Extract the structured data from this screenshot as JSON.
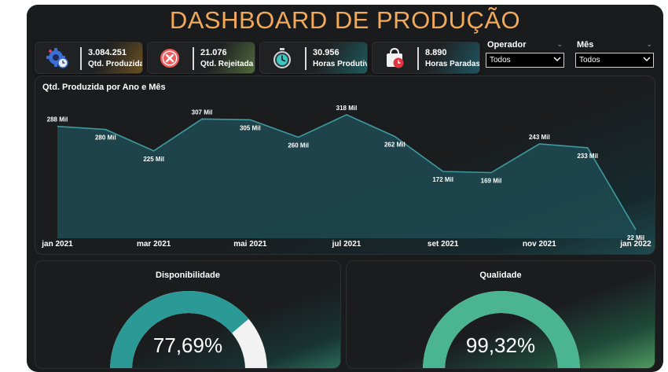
{
  "title": "DASHBOARD DE PRODUÇÃO",
  "kpis": [
    {
      "value": "3.084.251",
      "label": "Qtd. Produzida",
      "icon": "gear-clock-icon"
    },
    {
      "value": "21.076",
      "label": "Qtd. Rejeitada",
      "icon": "reject-x-icon"
    },
    {
      "value": "30.956",
      "label": "Horas Produtivas",
      "icon": "stopwatch-icon"
    },
    {
      "value": "8.890",
      "label": "Horas Paradas",
      "icon": "shopping-bag-clock-icon"
    }
  ],
  "filters": {
    "operador": {
      "title": "Operador",
      "selected": "Todos"
    },
    "mes": {
      "title": "Mês",
      "selected": "Todos"
    }
  },
  "chart_data": {
    "type": "area",
    "title": "Qtd. Produzida por Ano e Mês",
    "x": [
      "2021-01",
      "2021-02",
      "2021-03",
      "2021-04",
      "2021-05",
      "2021-06",
      "2021-07",
      "2021-08",
      "2021-09",
      "2021-10",
      "2021-11",
      "2021-12",
      "2022-01"
    ],
    "values": [
      288,
      280,
      225,
      307,
      305,
      260,
      318,
      262,
      172,
      169,
      243,
      233,
      22
    ],
    "data_labels": [
      "288 Mil",
      "280 Mil",
      "225 Mil",
      "307 Mil",
      "305 Mil",
      "260 Mil",
      "318 Mil",
      "262 Mil",
      "172 Mil",
      "169 Mil",
      "243 Mil",
      "233 Mil",
      "22 Mil"
    ],
    "tick_labels": [
      "jan 2021",
      "mar 2021",
      "mai 2021",
      "jul 2021",
      "set 2021",
      "nov 2021",
      "jan 2022"
    ],
    "unit": "Mil",
    "ylim": [
      0,
      340
    ],
    "grid": false,
    "colors": {
      "line": "#3f9aa0",
      "fill": "#1f4a52"
    }
  },
  "gauges": [
    {
      "title": "Disponibilidade",
      "value": 77.69,
      "display": "77,69%",
      "color": "#2b9a97",
      "track": "#f2f2f2"
    },
    {
      "title": "Qualidade",
      "value": 99.32,
      "display": "99,32%",
      "color": "#4bb592",
      "track": "#f2f2f2"
    }
  ],
  "colors": {
    "title": "#f2a95a",
    "background": "#1a1b1d"
  }
}
